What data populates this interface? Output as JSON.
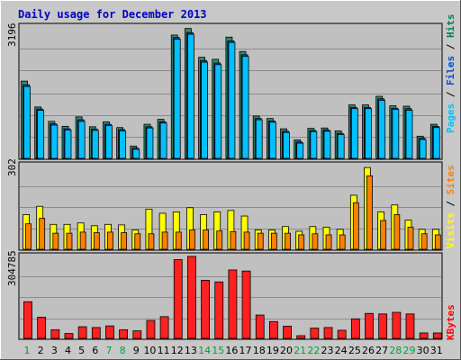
{
  "chart_data": {
    "type": "bar",
    "title": "Daily usage for December 2013",
    "days": [
      "1",
      "2",
      "3",
      "4",
      "5",
      "6",
      "7",
      "8",
      "9",
      "10",
      "11",
      "12",
      "13",
      "14",
      "15",
      "16",
      "17",
      "18",
      "19",
      "20",
      "21",
      "22",
      "23",
      "24",
      "25",
      "26",
      "27",
      "28",
      "29",
      "30",
      "31"
    ],
    "weekend_days": [
      "1",
      "7",
      "8",
      "14",
      "15",
      "21",
      "22",
      "28",
      "29"
    ],
    "panels": [
      {
        "id": "hits-files-pages",
        "ymax_label": "3196",
        "ymax": 3196,
        "legend": [
          {
            "text": "Pages",
            "color": "#00c0ff"
          },
          {
            "text": "Files",
            "color": "#0050d0"
          },
          {
            "text": "Hits",
            "color": "#008060"
          }
        ],
        "series": [
          {
            "name": "Hits",
            "color": "#2e8b6a",
            "values": [
              1880,
              1250,
              900,
              780,
              1010,
              770,
              890,
              750,
              300,
              830,
              950,
              3000,
              3160,
              2460,
              2410,
              2950,
              2600,
              1030,
              970,
              720,
              450,
              730,
              740,
              670,
              1300,
              1300,
              1510,
              1280,
              1270,
              540,
              830
            ]
          },
          {
            "name": "Files",
            "color": "#0050d0",
            "values": [
              1790,
              1200,
              840,
              720,
              940,
              710,
              830,
              700,
              250,
              770,
              890,
              2940,
              3060,
              2380,
              2320,
              2860,
              2520,
              970,
              910,
              660,
              400,
              680,
              690,
              610,
              1240,
              1240,
              1450,
              1220,
              1210,
              490,
              780
            ]
          },
          {
            "name": "Pages",
            "color": "#00c0ff",
            "values": [
              1750,
              1170,
              810,
              690,
              900,
              680,
              800,
              670,
              220,
              740,
              860,
              2900,
              3020,
              2340,
              2280,
              2820,
              2480,
              940,
              880,
              630,
              370,
              650,
              660,
              580,
              1210,
              1210,
              1410,
              1190,
              1170,
              460,
              750
            ]
          }
        ]
      },
      {
        "id": "visits-sites",
        "ymax_label": "302",
        "ymax": 302,
        "legend": [
          {
            "text": "Visits",
            "color": "#ffff00"
          },
          {
            "text": "Sites",
            "color": "#ff8000"
          }
        ],
        "series": [
          {
            "name": "Visits",
            "color": "#ffff00",
            "values": [
              125,
              155,
              90,
              90,
              95,
              85,
              90,
              88,
              70,
              145,
              130,
              135,
              150,
              125,
              135,
              140,
              120,
              70,
              70,
              82,
              65,
              82,
              80,
              72,
              195,
              295,
              135,
              160,
              105,
              72,
              72
            ]
          },
          {
            "name": "Sites",
            "color": "#ff8000",
            "values": [
              92,
              112,
              58,
              58,
              62,
              60,
              62,
              60,
              56,
              56,
              62,
              62,
              70,
              70,
              66,
              64,
              62,
              58,
              58,
              58,
              52,
              56,
              52,
              52,
              168,
              265,
              104,
              125,
              80,
              56,
              52
            ]
          }
        ]
      },
      {
        "id": "kbytes",
        "ymax_label": "304785",
        "ymax": 304785,
        "legend": [
          {
            "text": "KBytes",
            "color": "#ff0000"
          }
        ],
        "series": [
          {
            "name": "KBytes",
            "color": "#ff2020",
            "values": [
              135000,
              78000,
              32000,
              18000,
              43000,
              40000,
              46000,
              32000,
              28000,
              66000,
              80000,
              290000,
              302000,
              214000,
              208000,
              252000,
              248000,
              86000,
              62000,
              45000,
              10000,
              38000,
              40000,
              30000,
              72000,
              92000,
              90000,
              96000,
              90000,
              20000,
              20000
            ]
          }
        ]
      }
    ]
  }
}
